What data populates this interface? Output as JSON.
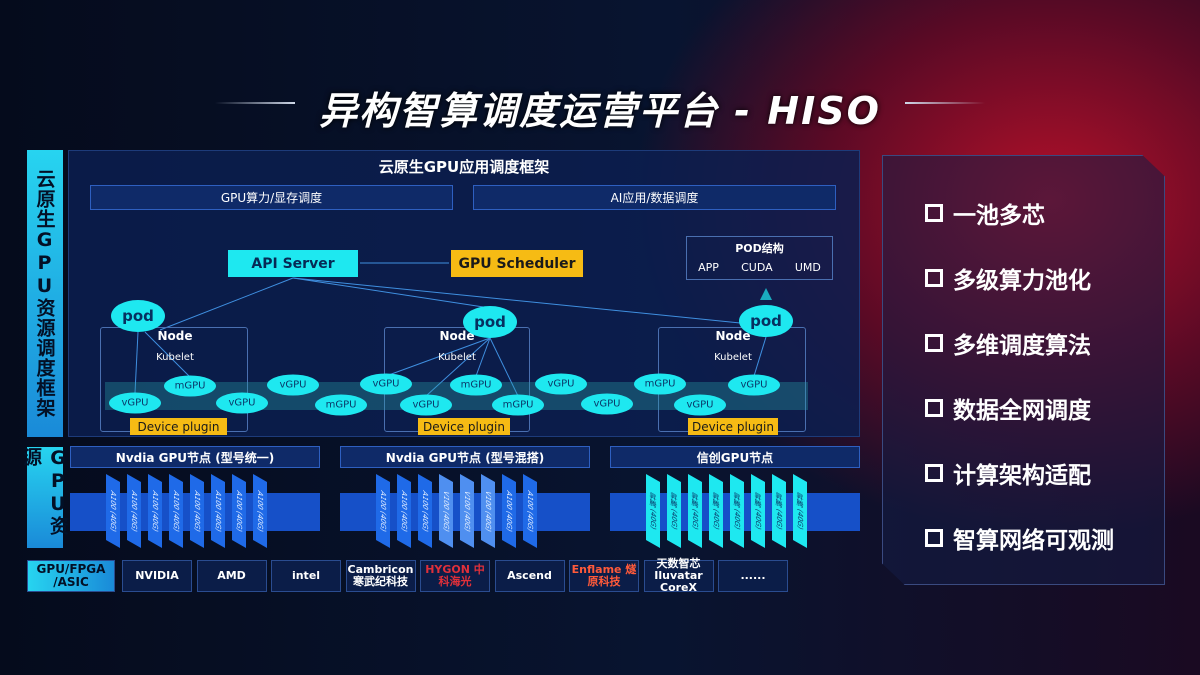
{
  "title": "异构智算调度运营平台 - HISO",
  "left_labels": {
    "top": "云原生GPU资源调度框架",
    "bottom": "GPU资源"
  },
  "framework": {
    "title": "云原生GPU应用调度框架",
    "bars": [
      "GPU算力/显存调度",
      "AI应用/数据调度"
    ]
  },
  "diagram": {
    "api_server": "API Server",
    "gpu_scheduler": "GPU Scheduler",
    "pod_struct": {
      "title": "POD结构",
      "items": [
        "APP",
        "CUDA",
        "UMD"
      ]
    },
    "pod": "pod",
    "node": "Node",
    "kubelet": "Kubelet",
    "device_plugin": "Device plugin",
    "units": [
      "vGPU",
      "mGPU",
      "vGPU",
      "vGPU",
      "mGPU",
      "vGPU",
      "vGPU",
      "mGPU",
      "mGPU",
      "vGPU",
      "vGPU",
      "mGPU",
      "vGPU",
      "vGPU"
    ]
  },
  "gpu_nodes": [
    {
      "title": "Nvdia GPU节点 (型号统一)",
      "cards": [
        "A100 (40G)",
        "A100 (40G)",
        "A100 (40G)",
        "A100 (40G)",
        "A100 (40G)",
        "A100 (40G)",
        "A100 (40G)",
        "A100 (40G)"
      ]
    },
    {
      "title": "Nvdia GPU节点 (型号混搭)",
      "cards": [
        "A100 (40G)",
        "A100 (40G)",
        "A100 (40G)",
        "V100 (40G)",
        "V100 (40G)",
        "V100 (40G)",
        "A100 (40G)",
        "A100 (40G)"
      ]
    },
    {
      "title": "信创GPU节点",
      "cards": [
        "昇腾 (40G)",
        "昇腾 (40G)",
        "昇腾 (40G)",
        "昇腾 (40G)",
        "昇腾 (40G)",
        "昇腾 (40G)",
        "昇腾 (40G)",
        "昇腾 (40G)"
      ]
    }
  ],
  "vendors": {
    "label": "GPU/FPGA /ASIC",
    "logos": [
      "NVIDIA",
      "AMD",
      "intel",
      "Cambricon 寒武纪科技",
      "HYGON 中科海光",
      "Ascend",
      "Enflame 燧原科技",
      "天数智芯 Iluvatar CoreX",
      "......"
    ]
  },
  "features": [
    "一池多芯",
    "多级算力池化",
    "多维调度算法",
    "数据全网调度",
    "计算架构适配",
    "智算网络可观测"
  ],
  "colors": {
    "cyan": "#1ee8f0",
    "yellow": "#f6bb14",
    "blue": "#1650c8"
  }
}
